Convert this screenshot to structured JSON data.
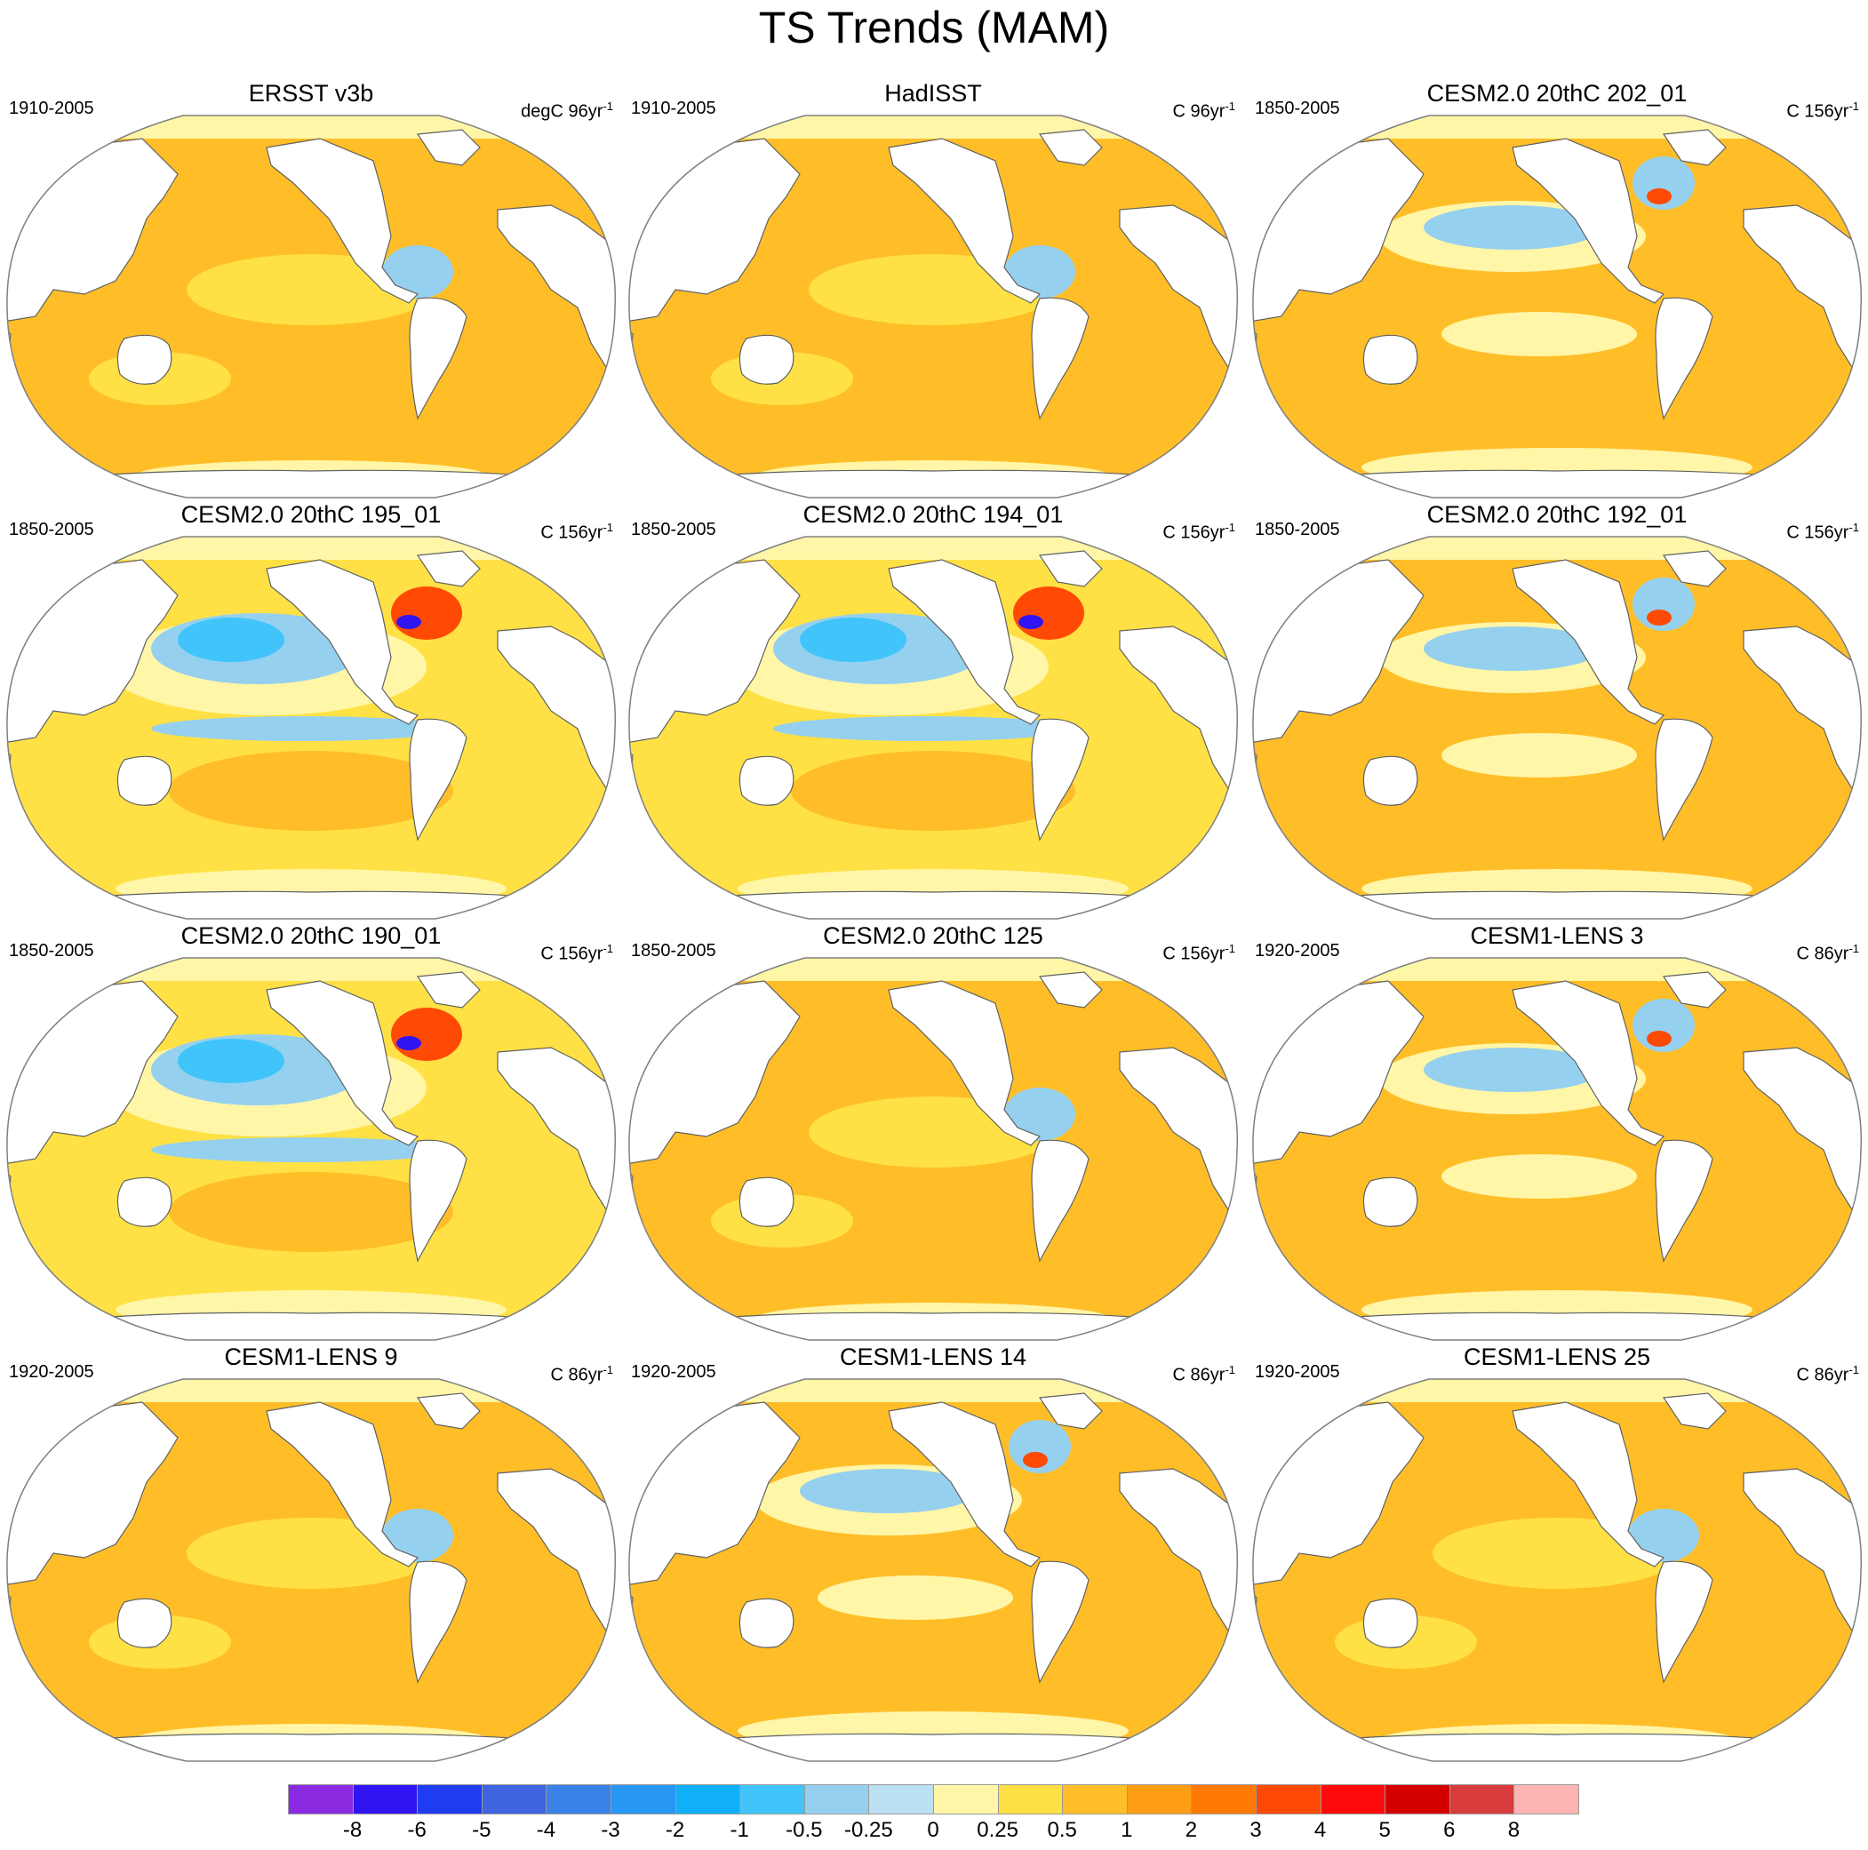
{
  "figure": {
    "title": "TS Trends (MAM)"
  },
  "panels": [
    {
      "title": "ERSST v3b",
      "period": "1910-2005",
      "units": "degC 96yr",
      "units_sup": "-1",
      "pattern": "warm"
    },
    {
      "title": "HadISST",
      "period": "1910-2005",
      "units": "C 96yr",
      "units_sup": "-1",
      "pattern": "warm"
    },
    {
      "title": "CESM2.0 20thC 202_01",
      "period": "1850-2005",
      "units": "C 156yr",
      "units_sup": "-1",
      "pattern": "mixed"
    },
    {
      "title": "CESM2.0 20thC 195_01",
      "period": "1850-2005",
      "units": "C 156yr",
      "units_sup": "-1",
      "pattern": "cool"
    },
    {
      "title": "CESM2.0 20thC 194_01",
      "period": "1850-2005",
      "units": "C 156yr",
      "units_sup": "-1",
      "pattern": "cool"
    },
    {
      "title": "CESM2.0 20thC 192_01",
      "period": "1850-2005",
      "units": "C 156yr",
      "units_sup": "-1",
      "pattern": "mixed"
    },
    {
      "title": "CESM2.0 20thC 190_01",
      "period": "1850-2005",
      "units": "C 156yr",
      "units_sup": "-1",
      "pattern": "cool"
    },
    {
      "title": "CESM2.0 20thC 125",
      "period": "1850-2005",
      "units": "C 156yr",
      "units_sup": "-1",
      "pattern": "warm"
    },
    {
      "title": "CESM1-LENS 3",
      "period": "1920-2005",
      "units": "C 86yr",
      "units_sup": "-1",
      "pattern": "mixed"
    },
    {
      "title": "CESM1-LENS 9",
      "period": "1920-2005",
      "units": "C 86yr",
      "units_sup": "-1",
      "pattern": "warm"
    },
    {
      "title": "CESM1-LENS 14",
      "period": "1920-2005",
      "units": "C 86yr",
      "units_sup": "-1",
      "pattern": "mixed"
    },
    {
      "title": "CESM1-LENS 25",
      "period": "1920-2005",
      "units": "C 86yr",
      "units_sup": "-1",
      "pattern": "warm"
    }
  ],
  "colorbar": {
    "labels": [
      "-8",
      "-6",
      "-5",
      "-4",
      "-3",
      "-2",
      "-1",
      "-0.5",
      "-0.25",
      "0",
      "0.25",
      "0.5",
      "1",
      "2",
      "3",
      "4",
      "5",
      "6",
      "8"
    ],
    "colors": [
      "#8a2be2",
      "#3014f2",
      "#1e3cf0",
      "#3e64e0",
      "#3a82e8",
      "#2896f5",
      "#10b0f8",
      "#40c4fa",
      "#96d0ef",
      "#bce0f4",
      "#fff6a8",
      "#ffe145",
      "#ffbe28",
      "#ff9d14",
      "#ff7a05",
      "#ff4a05",
      "#ff0a0a",
      "#d40000",
      "#d83c3c",
      "#ffb4b4"
    ]
  },
  "map_colors": {
    "ocean_warm": "#ffbe28",
    "ocean_mid": "#ffe145",
    "ocean_light": "#fff6a8",
    "ocean_cool": "#96d0ef",
    "ocean_cold": "#40c4fa",
    "hot_spot": "#ff4a05",
    "cold_spot": "#3014f2",
    "land": "#ffffff",
    "coast": "#606060",
    "border": "#808080"
  }
}
